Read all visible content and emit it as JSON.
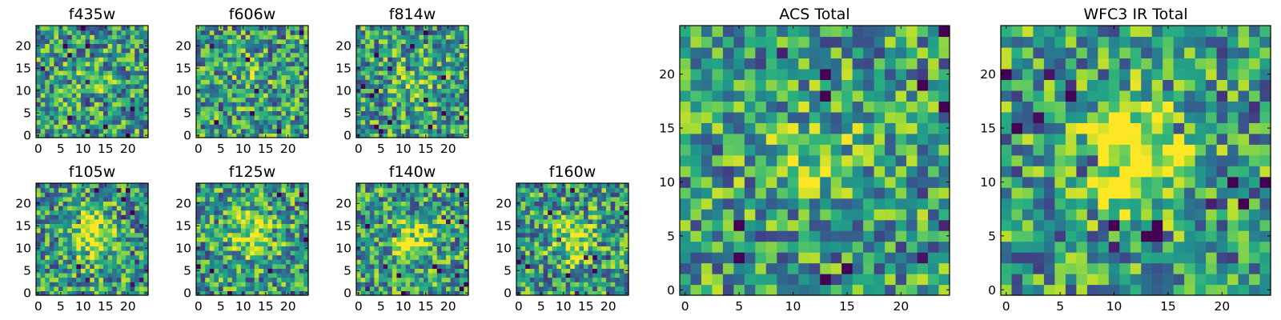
{
  "chart_data": [
    {
      "type": "heatmap",
      "title": "f435w",
      "xticks": [
        "0",
        "5",
        "10",
        "15",
        "20"
      ],
      "yticks": [
        "0",
        "5",
        "10",
        "15",
        "20"
      ],
      "xlim": [
        0,
        24
      ],
      "ylim": [
        0,
        24
      ],
      "grid_size": 25,
      "colormap": "viridis",
      "blob": {
        "center": [
          12,
          12
        ],
        "strength": 0.1
      }
    },
    {
      "type": "heatmap",
      "title": "f606w",
      "xticks": [
        "0",
        "5",
        "10",
        "15",
        "20"
      ],
      "yticks": [
        "0",
        "5",
        "10",
        "15",
        "20"
      ],
      "xlim": [
        0,
        24
      ],
      "ylim": [
        0,
        24
      ],
      "grid_size": 25,
      "colormap": "viridis",
      "blob": {
        "center": [
          12,
          12
        ],
        "strength": 0.1
      }
    },
    {
      "type": "heatmap",
      "title": "f814w",
      "xticks": [
        "0",
        "5",
        "10",
        "15",
        "20"
      ],
      "yticks": [
        "0",
        "5",
        "10",
        "15",
        "20"
      ],
      "xlim": [
        0,
        24
      ],
      "ylim": [
        0,
        24
      ],
      "grid_size": 25,
      "colormap": "viridis",
      "blob": {
        "center": [
          12,
          12
        ],
        "strength": 0.25
      }
    },
    {
      "type": "heatmap",
      "title": "f105w",
      "xticks": [
        "0",
        "5",
        "10",
        "15",
        "20"
      ],
      "yticks": [
        "0",
        "5",
        "10",
        "15",
        "20"
      ],
      "xlim": [
        0,
        24
      ],
      "ylim": [
        0,
        24
      ],
      "grid_size": 25,
      "colormap": "viridis",
      "blob": {
        "center": [
          12,
          13
        ],
        "strength": 0.45
      }
    },
    {
      "type": "heatmap",
      "title": "f125w",
      "xticks": [
        "0",
        "5",
        "10",
        "15",
        "20"
      ],
      "yticks": [
        "0",
        "5",
        "10",
        "15",
        "20"
      ],
      "xlim": [
        0,
        24
      ],
      "ylim": [
        0,
        24
      ],
      "grid_size": 25,
      "colormap": "viridis",
      "blob": {
        "center": [
          12,
          13
        ],
        "strength": 0.35
      }
    },
    {
      "type": "heatmap",
      "title": "f140w",
      "xticks": [
        "0",
        "5",
        "10",
        "15",
        "20"
      ],
      "yticks": [
        "0",
        "5",
        "10",
        "15",
        "20"
      ],
      "xlim": [
        0,
        24
      ],
      "ylim": [
        0,
        24
      ],
      "grid_size": 25,
      "colormap": "viridis",
      "blob": {
        "center": [
          12,
          12
        ],
        "strength": 0.4
      }
    },
    {
      "type": "heatmap",
      "title": "f160w",
      "xticks": [
        "0",
        "5",
        "10",
        "15",
        "20"
      ],
      "yticks": [
        "0",
        "5",
        "10",
        "15",
        "20"
      ],
      "xlim": [
        0,
        24
      ],
      "ylim": [
        0,
        24
      ],
      "grid_size": 25,
      "colormap": "viridis",
      "blob": {
        "center": [
          12,
          12
        ],
        "strength": 0.35
      }
    },
    {
      "type": "heatmap",
      "title": "ACS Total",
      "xticks": [
        "0",
        "5",
        "10",
        "15",
        "20"
      ],
      "yticks": [
        "0",
        "5",
        "10",
        "15",
        "20"
      ],
      "xlim": [
        0,
        24
      ],
      "ylim": [
        0,
        24
      ],
      "grid_size": 25,
      "colormap": "viridis",
      "blob": {
        "center": [
          12,
          12
        ],
        "strength": 0.2
      }
    },
    {
      "type": "heatmap",
      "title": "WFC3 IR Total",
      "xticks": [
        "0",
        "5",
        "10",
        "15",
        "20"
      ],
      "yticks": [
        "0",
        "5",
        "10",
        "15",
        "20"
      ],
      "xlim": [
        0,
        24
      ],
      "ylim": [
        0,
        24
      ],
      "grid_size": 25,
      "colormap": "viridis",
      "blob": {
        "center": [
          12,
          13
        ],
        "strength": 0.6
      }
    }
  ]
}
